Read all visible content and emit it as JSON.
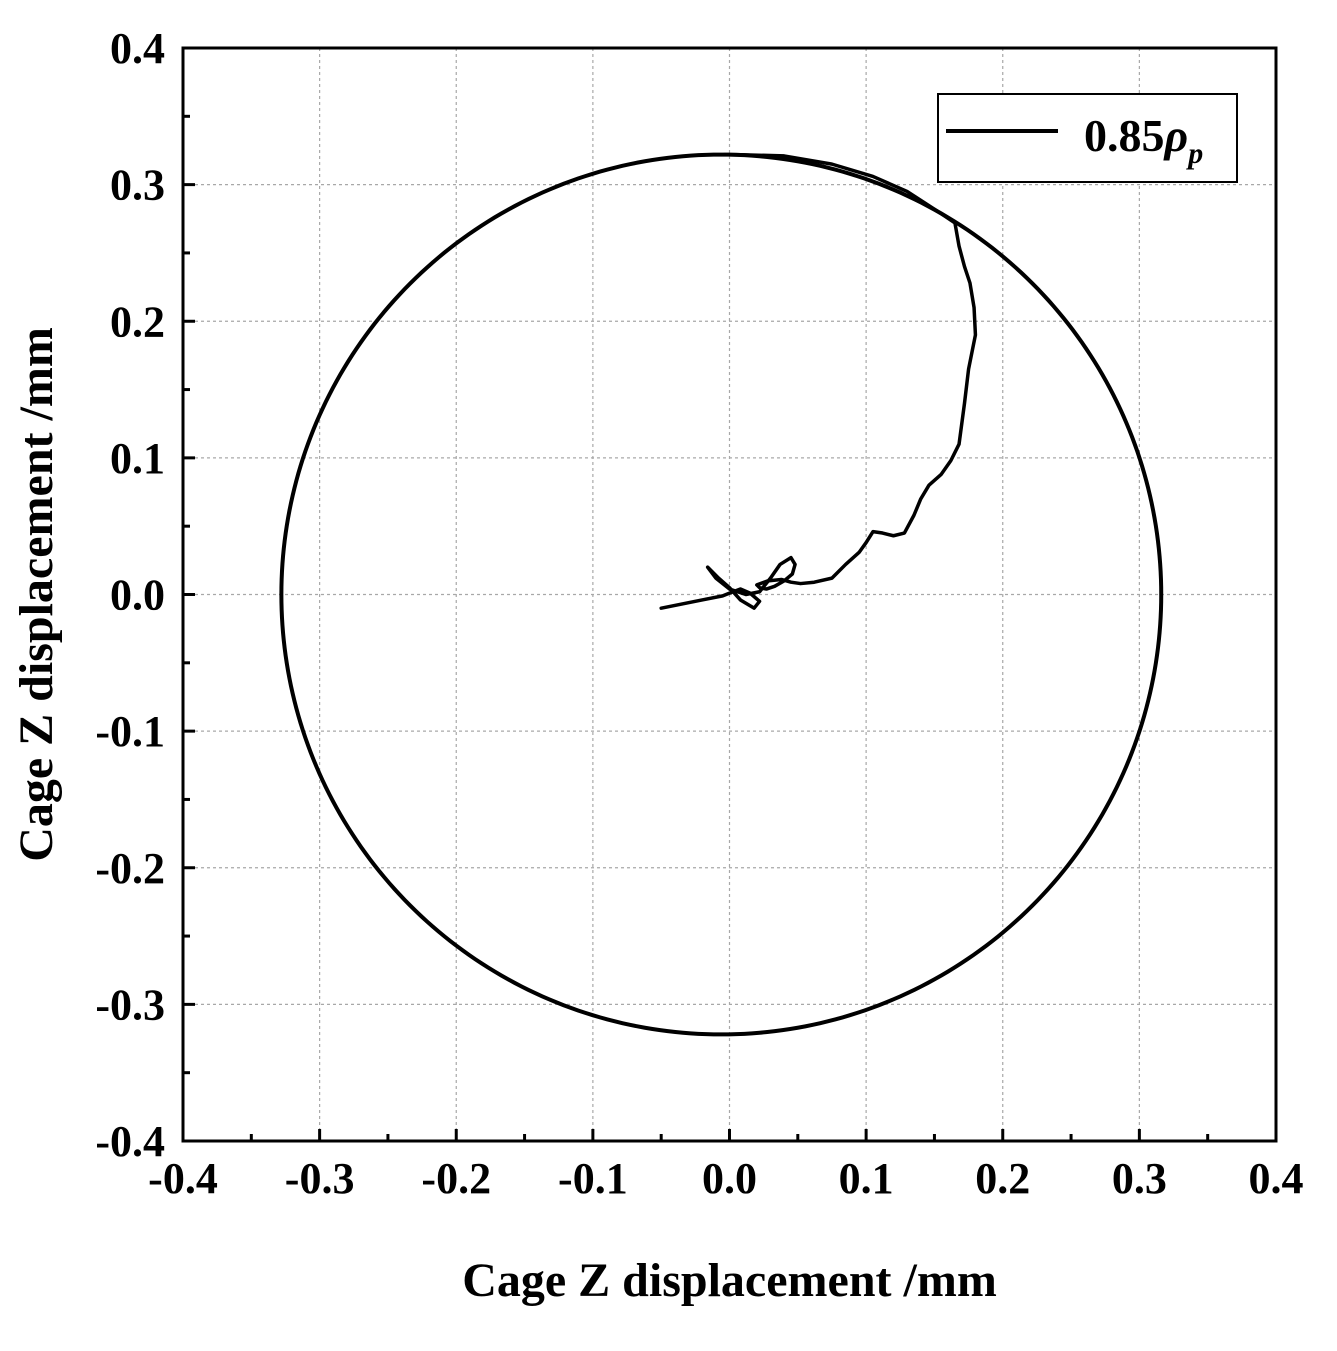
{
  "chart_data": {
    "type": "line",
    "xlabel": "Cage Z displacement /mm",
    "ylabel": "Cage Z displacement /mm",
    "xlim": [
      -0.4,
      0.4
    ],
    "ylim": [
      -0.4,
      0.4
    ],
    "xticks": [
      -0.4,
      -0.3,
      -0.2,
      -0.1,
      0.0,
      0.1,
      0.2,
      0.3,
      0.4
    ],
    "yticks": [
      -0.4,
      -0.3,
      -0.2,
      -0.1,
      0.0,
      0.1,
      0.2,
      0.3,
      0.4
    ],
    "xtick_labels": [
      "-0.4",
      "-0.3",
      "-0.2",
      "-0.1",
      "0.0",
      "0.1",
      "0.2",
      "0.3",
      "0.4"
    ],
    "ytick_labels": [
      "-0.4",
      "-0.3",
      "-0.2",
      "-0.1",
      "0.0",
      "0.1",
      "0.2",
      "0.3",
      "0.4"
    ],
    "grid": true,
    "legend_position": "top-right",
    "series": [
      {
        "name": "0.85ρp",
        "legend_base": "0.85",
        "legend_symbol": "ρ",
        "legend_subscript": "p",
        "color": "#000000",
        "guide_circle": {
          "center": [
            -0.006,
            0.0
          ],
          "radius": 0.322
        },
        "x": [
          -0.05,
          -0.035,
          -0.02,
          -0.005,
          0.0,
          0.008,
          0.015,
          0.022,
          0.018,
          0.008,
          0.0,
          -0.008,
          -0.016,
          -0.01,
          0.0,
          0.012,
          0.022,
          0.03,
          0.037,
          0.045,
          0.048,
          0.046,
          0.04,
          0.033,
          0.027,
          0.022,
          0.02,
          0.028,
          0.038,
          0.045,
          0.052,
          0.062,
          0.075,
          0.085,
          0.095,
          0.1,
          0.105,
          0.112,
          0.12,
          0.128,
          0.135,
          0.14,
          0.146,
          0.155,
          0.162,
          0.168,
          0.172,
          0.175,
          0.178,
          0.18,
          0.179,
          0.176,
          0.172,
          0.168,
          0.165,
          0.15,
          0.13,
          0.105,
          0.075,
          0.04,
          0.005,
          -0.004
        ],
        "y": [
          -0.01,
          -0.007,
          -0.004,
          -0.001,
          0.001,
          0.004,
          0.001,
          -0.005,
          -0.01,
          -0.004,
          0.005,
          0.012,
          0.02,
          0.012,
          0.004,
          0.0,
          0.002,
          0.012,
          0.022,
          0.027,
          0.022,
          0.015,
          0.01,
          0.006,
          0.004,
          0.005,
          0.007,
          0.01,
          0.011,
          0.009,
          0.008,
          0.009,
          0.012,
          0.022,
          0.031,
          0.038,
          0.046,
          0.045,
          0.043,
          0.045,
          0.058,
          0.07,
          0.08,
          0.088,
          0.098,
          0.11,
          0.14,
          0.165,
          0.18,
          0.19,
          0.21,
          0.228,
          0.24,
          0.255,
          0.272,
          0.282,
          0.295,
          0.306,
          0.315,
          0.321,
          0.322,
          0.322
        ]
      }
    ]
  }
}
